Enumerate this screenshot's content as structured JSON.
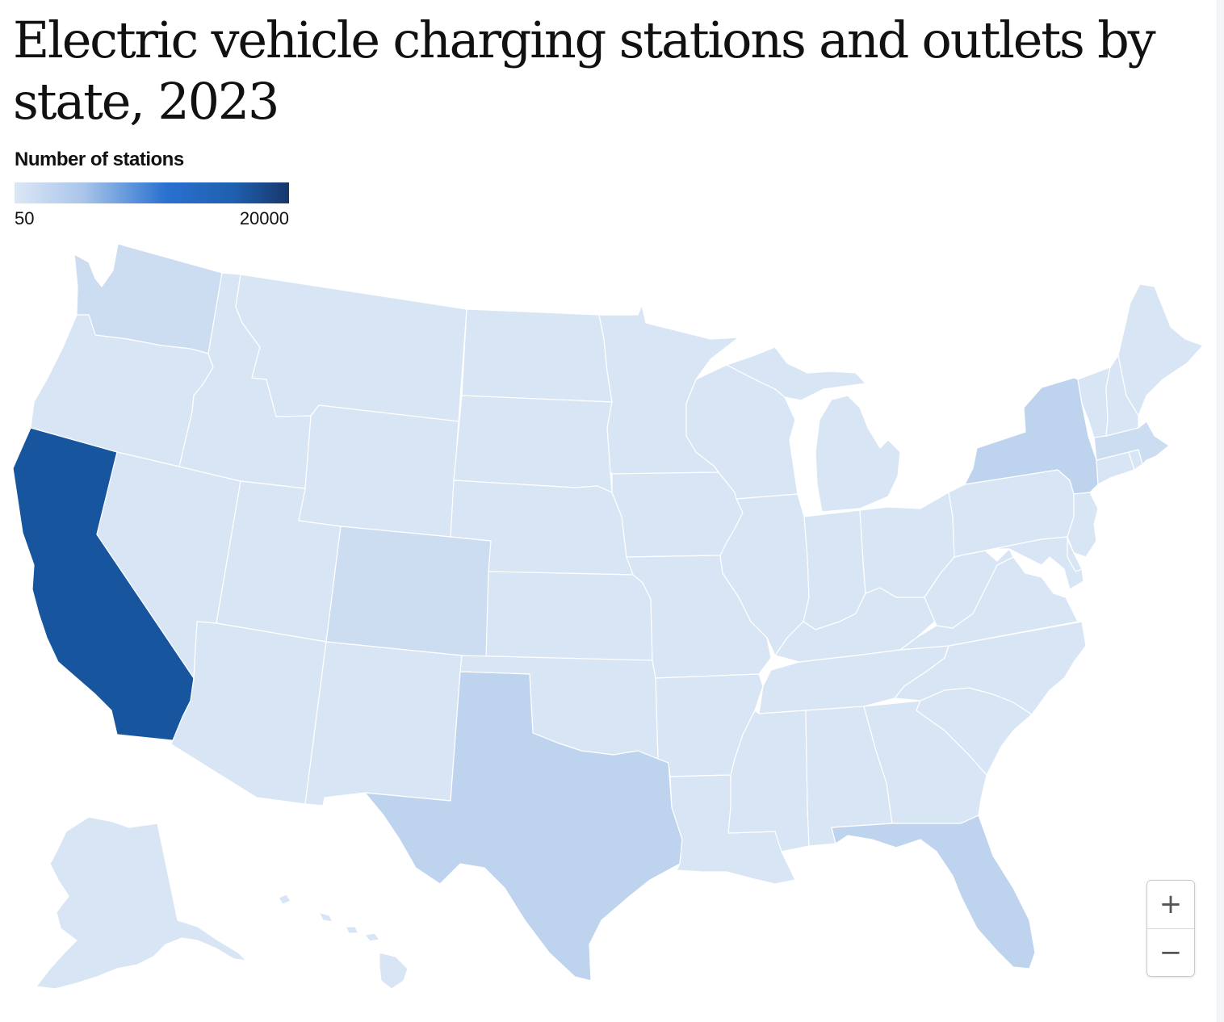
{
  "title": "Electric vehicle charging stations and outlets by state, 2023",
  "legend": {
    "title": "Number of stations",
    "min_label": "50",
    "max_label": "20000",
    "colors": [
      "#dce7f6",
      "#a9c5ea",
      "#2a71d0",
      "#1f5fae",
      "#17376a"
    ]
  },
  "zoom": {
    "in_label": "+",
    "out_label": "−"
  },
  "colors": {
    "state_lightest": "#d8e5f5",
    "state_light": "#ccdcf1",
    "state_medium": "#bed4ee",
    "state_highlight": "#17559f",
    "border": "#ffffff"
  },
  "map_data": {
    "states": [
      {
        "name": "Washington",
        "shade": "light"
      },
      {
        "name": "Oregon",
        "shade": "lightest"
      },
      {
        "name": "California",
        "shade": "highlight"
      },
      {
        "name": "Nevada",
        "shade": "lightest"
      },
      {
        "name": "Idaho",
        "shade": "lightest"
      },
      {
        "name": "Montana",
        "shade": "lightest"
      },
      {
        "name": "Wyoming",
        "shade": "lightest"
      },
      {
        "name": "Utah",
        "shade": "lightest"
      },
      {
        "name": "Arizona",
        "shade": "lightest"
      },
      {
        "name": "Colorado",
        "shade": "light"
      },
      {
        "name": "New Mexico",
        "shade": "lightest"
      },
      {
        "name": "North Dakota",
        "shade": "lightest"
      },
      {
        "name": "South Dakota",
        "shade": "lightest"
      },
      {
        "name": "Nebraska",
        "shade": "lightest"
      },
      {
        "name": "Kansas",
        "shade": "lightest"
      },
      {
        "name": "Oklahoma",
        "shade": "lightest"
      },
      {
        "name": "Texas",
        "shade": "medium"
      },
      {
        "name": "Minnesota",
        "shade": "lightest"
      },
      {
        "name": "Iowa",
        "shade": "lightest"
      },
      {
        "name": "Missouri",
        "shade": "lightest"
      },
      {
        "name": "Arkansas",
        "shade": "lightest"
      },
      {
        "name": "Louisiana",
        "shade": "lightest"
      },
      {
        "name": "Wisconsin",
        "shade": "lightest"
      },
      {
        "name": "Illinois",
        "shade": "lightest"
      },
      {
        "name": "Michigan",
        "shade": "lightest"
      },
      {
        "name": "Indiana",
        "shade": "lightest"
      },
      {
        "name": "Ohio",
        "shade": "lightest"
      },
      {
        "name": "Kentucky",
        "shade": "lightest"
      },
      {
        "name": "Tennessee",
        "shade": "lightest"
      },
      {
        "name": "Mississippi",
        "shade": "lightest"
      },
      {
        "name": "Alabama",
        "shade": "lightest"
      },
      {
        "name": "Georgia",
        "shade": "lightest"
      },
      {
        "name": "Florida",
        "shade": "medium"
      },
      {
        "name": "South Carolina",
        "shade": "lightest"
      },
      {
        "name": "North Carolina",
        "shade": "lightest"
      },
      {
        "name": "Virginia",
        "shade": "lightest"
      },
      {
        "name": "West Virginia",
        "shade": "lightest"
      },
      {
        "name": "Pennsylvania",
        "shade": "lightest"
      },
      {
        "name": "New York",
        "shade": "medium"
      },
      {
        "name": "New Jersey",
        "shade": "lightest"
      },
      {
        "name": "Delaware",
        "shade": "lightest"
      },
      {
        "name": "Maryland",
        "shade": "lightest"
      },
      {
        "name": "Connecticut",
        "shade": "lightest"
      },
      {
        "name": "Rhode Island",
        "shade": "lightest"
      },
      {
        "name": "Massachusetts",
        "shade": "light"
      },
      {
        "name": "Vermont",
        "shade": "lightest"
      },
      {
        "name": "New Hampshire",
        "shade": "lightest"
      },
      {
        "name": "Maine",
        "shade": "lightest"
      },
      {
        "name": "Alaska",
        "shade": "lightest"
      },
      {
        "name": "Hawaii",
        "shade": "lightest"
      }
    ]
  }
}
